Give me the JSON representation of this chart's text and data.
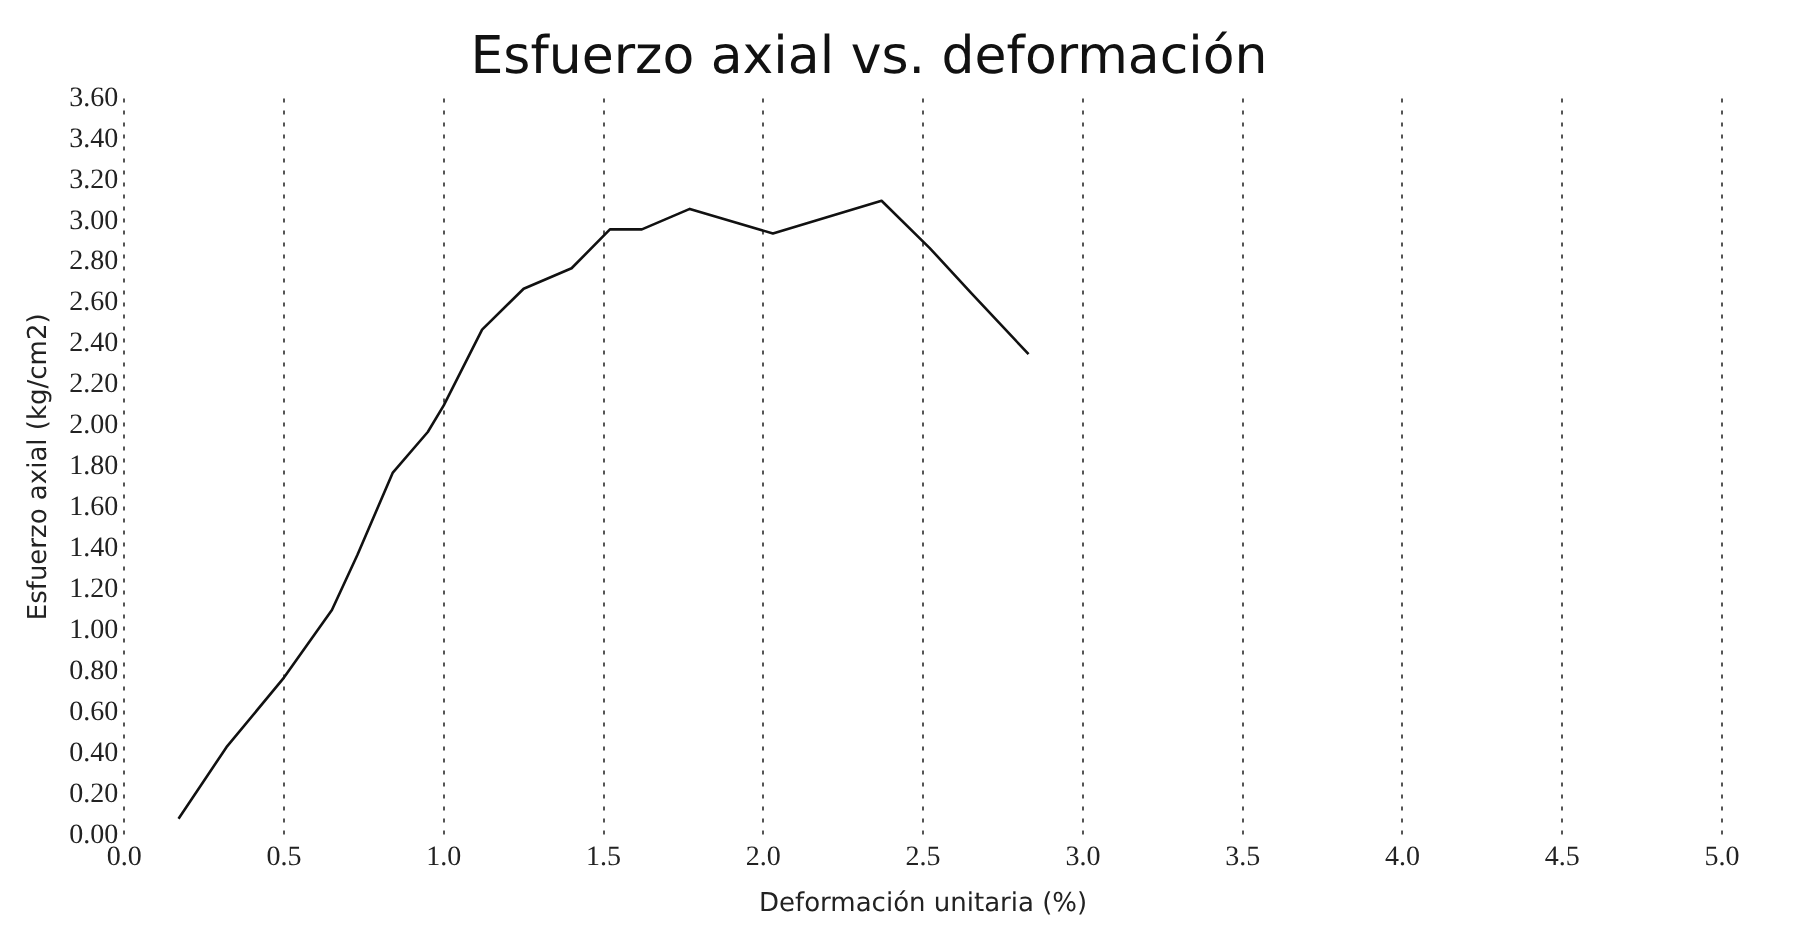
{
  "chart_data": {
    "type": "line",
    "title": "Esfuerzo axial vs. deformación",
    "xlabel": "Deformación unitaria (%)",
    "ylabel": "Esfuerzo axial (kg/cm2)",
    "series": [
      {
        "color": "#111111",
        "x": [
          0.17,
          0.32,
          0.5,
          0.65,
          0.73,
          0.84,
          0.95,
          1.0,
          1.12,
          1.25,
          1.4,
          1.52,
          1.62,
          1.77,
          2.03,
          2.37,
          2.52,
          2.65,
          2.83
        ],
        "values": [
          0.08,
          0.43,
          0.77,
          1.1,
          1.37,
          1.77,
          1.97,
          2.1,
          2.47,
          2.67,
          2.77,
          2.96,
          2.96,
          3.06,
          2.94,
          3.1,
          2.87,
          2.65,
          2.35
        ]
      }
    ],
    "xlim": [
      0,
      5
    ],
    "xticks": [
      {
        "value": 0,
        "label": "0.0"
      },
      {
        "value": 0.5,
        "label": "0.5"
      },
      {
        "value": 1,
        "label": "1.0"
      },
      {
        "value": 1.5,
        "label": "1.5"
      },
      {
        "value": 2,
        "label": "2.0"
      },
      {
        "value": 2.5,
        "label": "2.5"
      },
      {
        "value": 3,
        "label": "3.0"
      },
      {
        "value": 3.5,
        "label": "3.5"
      },
      {
        "value": 4,
        "label": "4.0"
      },
      {
        "value": 4.5,
        "label": "4.5"
      },
      {
        "value": 5,
        "label": "5.0"
      }
    ],
    "ylim": [
      0,
      3.6
    ],
    "yticks": [
      {
        "value": 0,
        "label": "0.00"
      },
      {
        "value": 0.2,
        "label": "0.20"
      },
      {
        "value": 0.4,
        "label": "0.40"
      },
      {
        "value": 0.6,
        "label": "0.60"
      },
      {
        "value": 0.8,
        "label": "0.80"
      },
      {
        "value": 1,
        "label": "1.00"
      },
      {
        "value": 1.2,
        "label": "1.20"
      },
      {
        "value": 1.4,
        "label": "1.40"
      },
      {
        "value": 1.6,
        "label": "1.60"
      },
      {
        "value": 1.8,
        "label": "1.80"
      },
      {
        "value": 2,
        "label": "2.00"
      },
      {
        "value": 2.2,
        "label": "2.20"
      },
      {
        "value": 2.4,
        "label": "2.40"
      },
      {
        "value": 2.6,
        "label": "2.60"
      },
      {
        "value": 2.8,
        "label": "2.80"
      },
      {
        "value": 3,
        "label": "3.00"
      },
      {
        "value": 3.2,
        "label": "3.20"
      },
      {
        "value": 3.4,
        "label": "3.40"
      },
      {
        "value": 3.6,
        "label": "3.60"
      }
    ],
    "grid": "x",
    "marker": "none",
    "line_style": "solid",
    "legend": false
  }
}
